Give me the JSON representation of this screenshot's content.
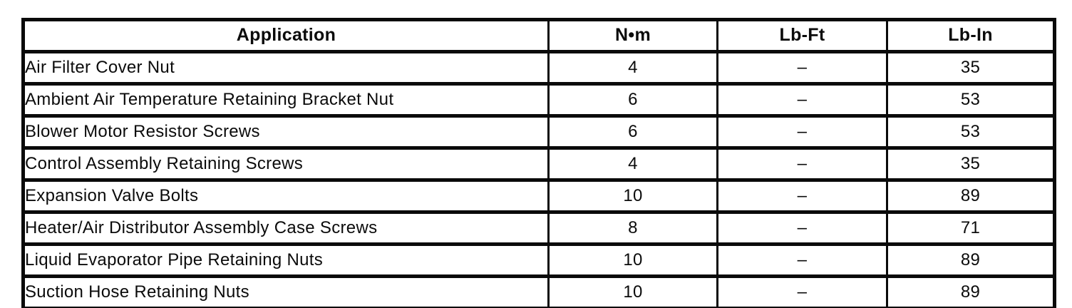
{
  "table": {
    "headers": {
      "application": "Application",
      "nm": "N•m",
      "lbft": "Lb-Ft",
      "lbin": "Lb-In"
    },
    "rows": [
      {
        "application": "Air Filter Cover Nut",
        "nm": "4",
        "lbft": "–",
        "lbin": "35"
      },
      {
        "application": "Ambient Air Temperature Retaining Bracket Nut",
        "nm": "6",
        "lbft": "–",
        "lbin": "53"
      },
      {
        "application": "Blower Motor Resistor Screws",
        "nm": "6",
        "lbft": "–",
        "lbin": "53"
      },
      {
        "application": "Control Assembly Retaining Screws",
        "nm": "4",
        "lbft": "–",
        "lbin": "35"
      },
      {
        "application": "Expansion Valve Bolts",
        "nm": "10",
        "lbft": "–",
        "lbin": "89"
      },
      {
        "application": "Heater/Air Distributor Assembly Case Screws",
        "nm": "8",
        "lbft": "–",
        "lbin": "71"
      },
      {
        "application": "Liquid Evaporator Pipe Retaining Nuts",
        "nm": "10",
        "lbft": "–",
        "lbin": "89"
      },
      {
        "application": "Suction Hose Retaining Nuts",
        "nm": "10",
        "lbft": "–",
        "lbin": "89"
      }
    ]
  }
}
